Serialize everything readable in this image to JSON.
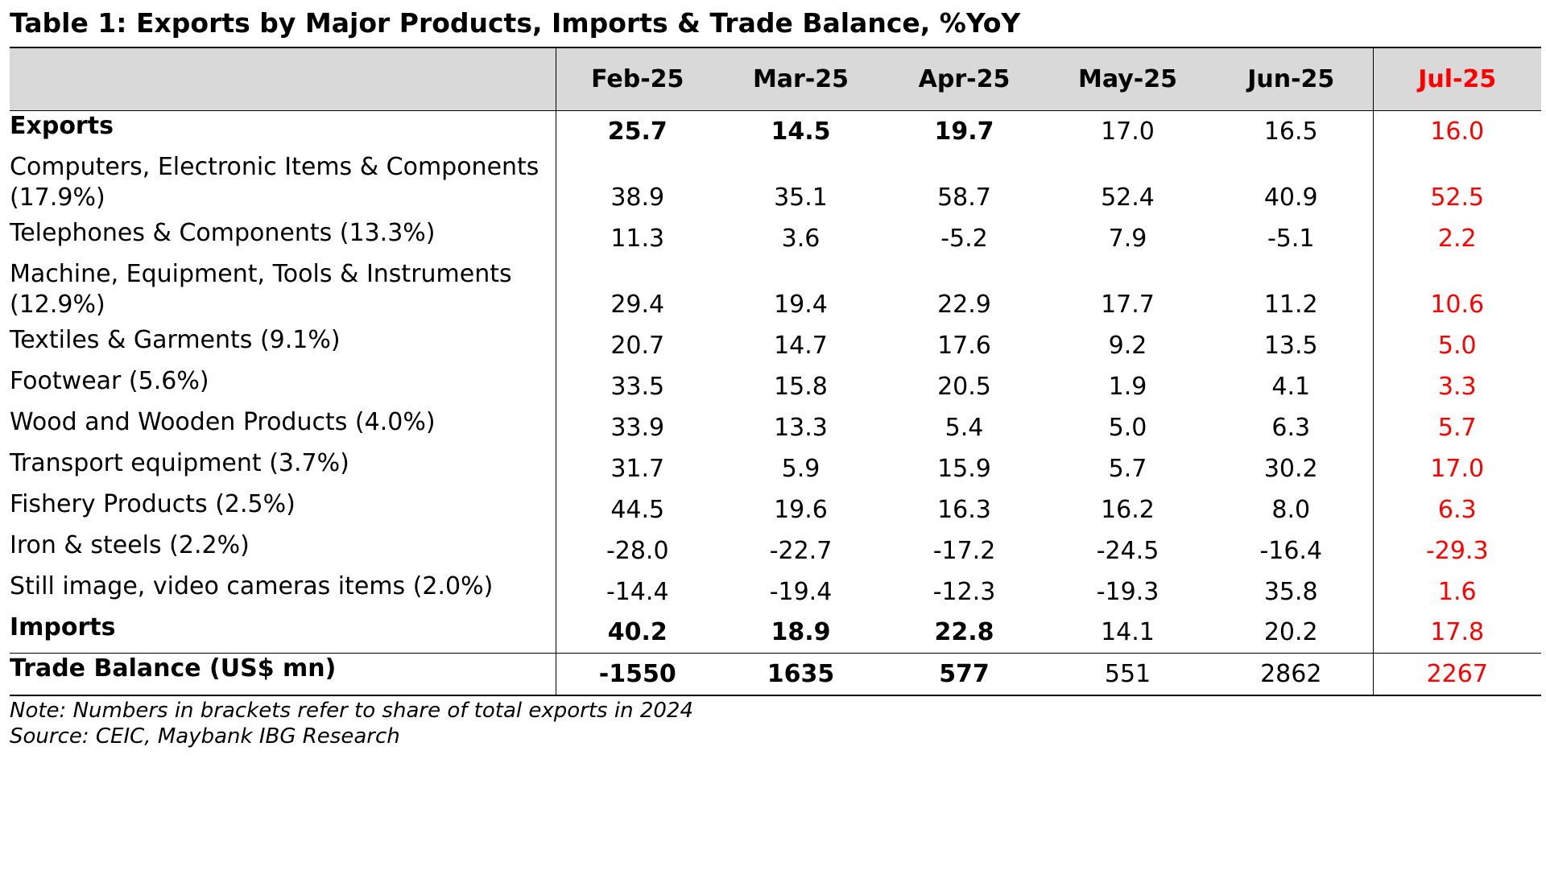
{
  "title": "Table 1: Exports by Major Products, Imports & Trade Balance, %YoY",
  "columns": [
    "Feb-25",
    "Mar-25",
    "Apr-25",
    "May-25",
    "Jun-25",
    "Jul-25"
  ],
  "rows": [
    {
      "label": "Exports",
      "label2": "",
      "values": [
        "25.7",
        "14.5",
        "19.7",
        "17.0",
        "16.5",
        "16.0"
      ]
    },
    {
      "label": "Computers, Electronic Items & Components",
      "label2": "(17.9%)",
      "values": [
        "38.9",
        "35.1",
        "58.7",
        "52.4",
        "40.9",
        "52.5"
      ]
    },
    {
      "label": "Telephones & Components (13.3%)",
      "label2": "",
      "values": [
        "11.3",
        "3.6",
        "-5.2",
        "7.9",
        "-5.1",
        "2.2"
      ]
    },
    {
      "label": "Machine, Equipment, Tools & Instruments",
      "label2": "(12.9%)",
      "values": [
        "29.4",
        "19.4",
        "22.9",
        "17.7",
        "11.2",
        "10.6"
      ]
    },
    {
      "label": "Textiles & Garments (9.1%)",
      "label2": "",
      "values": [
        "20.7",
        "14.7",
        "17.6",
        "9.2",
        "13.5",
        "5.0"
      ]
    },
    {
      "label": "Footwear (5.6%)",
      "label2": "",
      "values": [
        "33.5",
        "15.8",
        "20.5",
        "1.9",
        "4.1",
        "3.3"
      ]
    },
    {
      "label": "Wood and Wooden Products (4.0%)",
      "label2": "",
      "values": [
        "33.9",
        "13.3",
        "5.4",
        "5.0",
        "6.3",
        "5.7"
      ]
    },
    {
      "label": "Transport equipment (3.7%)",
      "label2": "",
      "values": [
        "31.7",
        "5.9",
        "15.9",
        "5.7",
        "30.2",
        "17.0"
      ]
    },
    {
      "label": "Fishery Products (2.5%)",
      "label2": "",
      "values": [
        "44.5",
        "19.6",
        "16.3",
        "16.2",
        "8.0",
        "6.3"
      ]
    },
    {
      "label": "Iron & steels (2.2%)",
      "label2": "",
      "values": [
        "-28.0",
        "-22.7",
        "-17.2",
        "-24.5",
        "-16.4",
        "-29.3"
      ]
    },
    {
      "label": "Still image, video cameras items (2.0%)",
      "label2": "",
      "values": [
        "-14.4",
        "-19.4",
        "-12.3",
        "-19.3",
        "35.8",
        "1.6"
      ]
    },
    {
      "label": "Imports",
      "label2": "",
      "values": [
        "40.2",
        "18.9",
        "22.8",
        "14.1",
        "20.2",
        "17.8"
      ]
    },
    {
      "label": "Trade Balance (US$ mn)",
      "label2": "",
      "values": [
        "-1550",
        "1635",
        "577",
        "551",
        "2862",
        "2267"
      ]
    }
  ],
  "notes": {
    "note": "Note: Numbers in brackets refer to share of total exports in 2024",
    "source": "Source: CEIC, Maybank IBG Research"
  },
  "colors": {
    "header_bg": "#d9d9d9",
    "highlight": "#ff0000"
  }
}
